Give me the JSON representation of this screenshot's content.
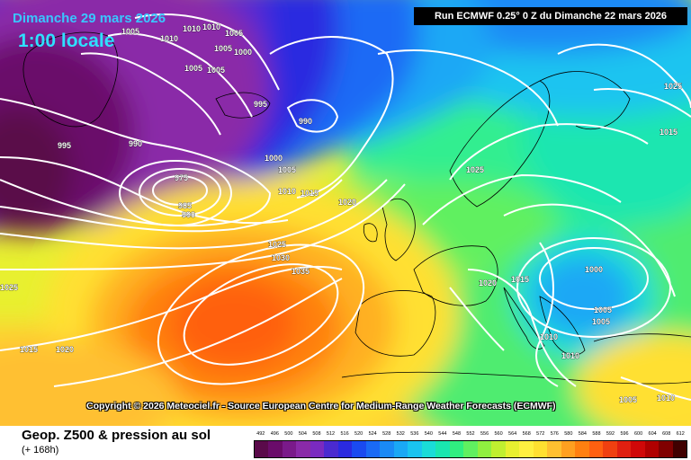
{
  "header": {
    "date_title": "Dimanche 29 mars 2026",
    "local_time": "1:00 locale",
    "run_info": "Run ECMWF 0.25° 0 Z du Dimanche 22 mars 2026"
  },
  "copyright": "Copyright © 2026 Meteociel.fr - Source European Centre for Medium-Range Weather Forecasts (ECMWF)",
  "footer": {
    "title": "Geop. Z500 & pression au sol",
    "lead": "(+ 168h)"
  },
  "scale": {
    "values": [
      "492",
      "496",
      "500",
      "504",
      "508",
      "512",
      "516",
      "520",
      "524",
      "528",
      "532",
      "536",
      "540",
      "544",
      "548",
      "552",
      "556",
      "560",
      "564",
      "568",
      "572",
      "576",
      "580",
      "584",
      "588",
      "592",
      "596",
      "600",
      "604",
      "608",
      "612"
    ],
    "colors": [
      "#5a0a4a",
      "#6a0c6a",
      "#7a1a8a",
      "#8a2aa8",
      "#7a2ac0",
      "#4a2ad0",
      "#2a2ae0",
      "#1a4af0",
      "#1a6af5",
      "#1a8af5",
      "#1aa8f5",
      "#1ac4f0",
      "#1adcd8",
      "#1ae6b0",
      "#30ee80",
      "#60f060",
      "#90f040",
      "#c0f030",
      "#e8f030",
      "#fff040",
      "#ffe030",
      "#ffc030",
      "#ffa020",
      "#ff8010",
      "#ff6010",
      "#f04010",
      "#e02010",
      "#d00808",
      "#b00000",
      "#800000",
      "#400000"
    ]
  },
  "isobars": [
    {
      "text": "1005",
      "x": 1005,
      "y": 1005
    },
    {
      "text": "1010"
    },
    {
      "text": "1010"
    },
    {
      "text": "1010"
    },
    {
      "text": "1005"
    },
    {
      "text": "1000"
    },
    {
      "text": "1005"
    },
    {
      "text": "1005"
    },
    {
      "text": "1005"
    },
    {
      "text": "995"
    },
    {
      "text": "990"
    },
    {
      "text": "995"
    },
    {
      "text": "990"
    },
    {
      "text": "975"
    },
    {
      "text": "985"
    },
    {
      "text": "990"
    },
    {
      "text": "1000"
    },
    {
      "text": "1005"
    },
    {
      "text": "1010"
    },
    {
      "text": "1015"
    },
    {
      "text": "1020"
    },
    {
      "text": "1025"
    },
    {
      "text": "1030"
    },
    {
      "text": "1035"
    },
    {
      "text": "1025"
    },
    {
      "text": "1015"
    },
    {
      "text": "1020"
    },
    {
      "text": "1025"
    },
    {
      "text": "1025"
    },
    {
      "text": "1015"
    },
    {
      "text": "1000"
    },
    {
      "text": "1005"
    },
    {
      "text": "1005"
    },
    {
      "text": "1010"
    },
    {
      "text": "1010"
    },
    {
      "text": "1020"
    },
    {
      "text": "1015"
    },
    {
      "text": "1005"
    },
    {
      "text": "1010"
    }
  ],
  "colors": {
    "title_blue": "#39c6ff",
    "run_bg": "#000000"
  }
}
